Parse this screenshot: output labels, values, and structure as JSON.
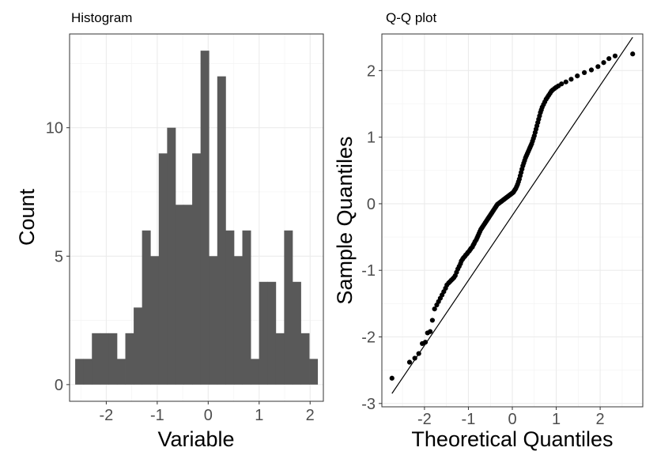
{
  "chart_data": [
    {
      "type": "bar",
      "title": "Histogram",
      "xlabel": "Variable",
      "ylabel": "Count",
      "bin_width": 0.164,
      "bin_start": -2.61,
      "counts": [
        1,
        1,
        2,
        2,
        2,
        1,
        2,
        3,
        6,
        5,
        9,
        10,
        7,
        7,
        9,
        13,
        5,
        12,
        6,
        5,
        6,
        1,
        4,
        4,
        2,
        6,
        4,
        2,
        1
      ],
      "xlim": [
        -2.72,
        2.26
      ],
      "ylim": [
        -0.65,
        13.65
      ],
      "x_ticks": [
        -2,
        -1,
        0,
        1,
        2
      ],
      "x_tick_labels": [
        "-2",
        "-1",
        "0",
        "1",
        "2"
      ],
      "y_ticks": [
        0,
        5,
        10
      ],
      "y_tick_labels": [
        "0",
        "5",
        "10"
      ],
      "bar_color": "#595959",
      "grid": true
    },
    {
      "type": "scatter",
      "title": "Q-Q plot",
      "xlabel": "Theoretical Quantiles",
      "ylabel": "Sample Quantiles",
      "points": [
        [
          -2.74,
          -2.62
        ],
        [
          -2.34,
          -2.38
        ],
        [
          -2.22,
          -2.32
        ],
        [
          -2.13,
          -2.25
        ],
        [
          -2.05,
          -2.1
        ],
        [
          -1.98,
          -2.08
        ],
        [
          -1.93,
          -1.94
        ],
        [
          -1.87,
          -1.92
        ],
        [
          -1.82,
          -1.75
        ],
        [
          -1.77,
          -1.58
        ],
        [
          -1.72,
          -1.52
        ],
        [
          -1.68,
          -1.47
        ],
        [
          -1.64,
          -1.42
        ],
        [
          -1.6,
          -1.37
        ],
        [
          -1.56,
          -1.32
        ],
        [
          -1.52,
          -1.27
        ],
        [
          -1.49,
          -1.22
        ],
        [
          -1.45,
          -1.19
        ],
        [
          -1.42,
          -1.17
        ],
        [
          -1.39,
          -1.15
        ],
        [
          -1.36,
          -1.13
        ],
        [
          -1.33,
          -1.11
        ],
        [
          -1.3,
          -1.08
        ],
        [
          -1.27,
          -1.03
        ],
        [
          -1.24,
          -0.98
        ],
        [
          -1.21,
          -0.94
        ],
        [
          -1.18,
          -0.9
        ],
        [
          -1.16,
          -0.86
        ],
        [
          -1.13,
          -0.83
        ],
        [
          -1.11,
          -0.81
        ],
        [
          -1.08,
          -0.79
        ],
        [
          -1.06,
          -0.77
        ],
        [
          -1.03,
          -0.75
        ],
        [
          -1.01,
          -0.73
        ],
        [
          -0.98,
          -0.71
        ],
        [
          -0.96,
          -0.69
        ],
        [
          -0.94,
          -0.67
        ],
        [
          -0.91,
          -0.65
        ],
        [
          -0.89,
          -0.62
        ],
        [
          -0.87,
          -0.6
        ],
        [
          -0.85,
          -0.57
        ],
        [
          -0.82,
          -0.54
        ],
        [
          -0.8,
          -0.51
        ],
        [
          -0.78,
          -0.48
        ],
        [
          -0.76,
          -0.45
        ],
        [
          -0.74,
          -0.42
        ],
        [
          -0.72,
          -0.39
        ],
        [
          -0.7,
          -0.37
        ],
        [
          -0.68,
          -0.35
        ],
        [
          -0.66,
          -0.33
        ],
        [
          -0.64,
          -0.31
        ],
        [
          -0.62,
          -0.29
        ],
        [
          -0.6,
          -0.27
        ],
        [
          -0.58,
          -0.25
        ],
        [
          -0.56,
          -0.23
        ],
        [
          -0.54,
          -0.21
        ],
        [
          -0.52,
          -0.19
        ],
        [
          -0.5,
          -0.17
        ],
        [
          -0.48,
          -0.15
        ],
        [
          -0.46,
          -0.13
        ],
        [
          -0.44,
          -0.11
        ],
        [
          -0.42,
          -0.09
        ],
        [
          -0.4,
          -0.07
        ],
        [
          -0.38,
          -0.05
        ],
        [
          -0.36,
          -0.03
        ],
        [
          -0.34,
          -0.01
        ],
        [
          -0.32,
          0.0
        ],
        [
          -0.3,
          0.01
        ],
        [
          -0.28,
          0.02
        ],
        [
          -0.26,
          0.03
        ],
        [
          -0.24,
          0.04
        ],
        [
          -0.22,
          0.05
        ],
        [
          -0.2,
          0.06
        ],
        [
          -0.18,
          0.07
        ],
        [
          -0.16,
          0.08
        ],
        [
          -0.14,
          0.09
        ],
        [
          -0.12,
          0.1
        ],
        [
          -0.1,
          0.11
        ],
        [
          -0.08,
          0.12
        ],
        [
          -0.06,
          0.13
        ],
        [
          -0.04,
          0.14
        ],
        [
          -0.02,
          0.15
        ],
        [
          0.0,
          0.16
        ],
        [
          0.02,
          0.17
        ],
        [
          0.04,
          0.19
        ],
        [
          0.06,
          0.21
        ],
        [
          0.08,
          0.23
        ],
        [
          0.1,
          0.26
        ],
        [
          0.12,
          0.29
        ],
        [
          0.14,
          0.33
        ],
        [
          0.16,
          0.37
        ],
        [
          0.18,
          0.42
        ],
        [
          0.2,
          0.47
        ],
        [
          0.22,
          0.52
        ],
        [
          0.24,
          0.57
        ],
        [
          0.26,
          0.61
        ],
        [
          0.28,
          0.65
        ],
        [
          0.3,
          0.69
        ],
        [
          0.32,
          0.72
        ],
        [
          0.34,
          0.75
        ],
        [
          0.36,
          0.78
        ],
        [
          0.38,
          0.81
        ],
        [
          0.4,
          0.84
        ],
        [
          0.42,
          0.87
        ],
        [
          0.44,
          0.9
        ],
        [
          0.46,
          0.94
        ],
        [
          0.48,
          0.98
        ],
        [
          0.5,
          1.02
        ],
        [
          0.52,
          1.07
        ],
        [
          0.54,
          1.12
        ],
        [
          0.56,
          1.17
        ],
        [
          0.58,
          1.22
        ],
        [
          0.6,
          1.27
        ],
        [
          0.62,
          1.32
        ],
        [
          0.64,
          1.37
        ],
        [
          0.66,
          1.41
        ],
        [
          0.68,
          1.45
        ],
        [
          0.71,
          1.49
        ],
        [
          0.74,
          1.53
        ],
        [
          0.77,
          1.57
        ],
        [
          0.8,
          1.6
        ],
        [
          0.83,
          1.63
        ],
        [
          0.86,
          1.66
        ],
        [
          0.89,
          1.69
        ],
        [
          0.92,
          1.71
        ],
        [
          0.96,
          1.73
        ],
        [
          1.0,
          1.75
        ],
        [
          1.05,
          1.77
        ],
        [
          1.12,
          1.8
        ],
        [
          1.22,
          1.83
        ],
        [
          1.34,
          1.87
        ],
        [
          1.48,
          1.92
        ],
        [
          1.64,
          1.97
        ],
        [
          1.8,
          2.01
        ],
        [
          1.95,
          2.06
        ],
        [
          2.08,
          2.12
        ],
        [
          2.2,
          2.18
        ],
        [
          2.34,
          2.22
        ],
        [
          2.74,
          2.25
        ]
      ],
      "ref_line": [
        [
          -2.74,
          -2.85
        ],
        [
          2.74,
          2.5
        ]
      ],
      "xlim": [
        -2.97,
        2.97
      ],
      "ylim": [
        -3.05,
        2.55
      ],
      "x_ticks": [
        -2,
        -1,
        0,
        1,
        2
      ],
      "x_tick_labels": [
        "-2",
        "-1",
        "0",
        "1",
        "2"
      ],
      "y_ticks": [
        -3,
        -2,
        -1,
        0,
        1,
        2
      ],
      "y_tick_labels": [
        "-3",
        "-2",
        "-1",
        "0",
        "1",
        "2"
      ],
      "point_color": "#000000",
      "grid": true
    }
  ]
}
